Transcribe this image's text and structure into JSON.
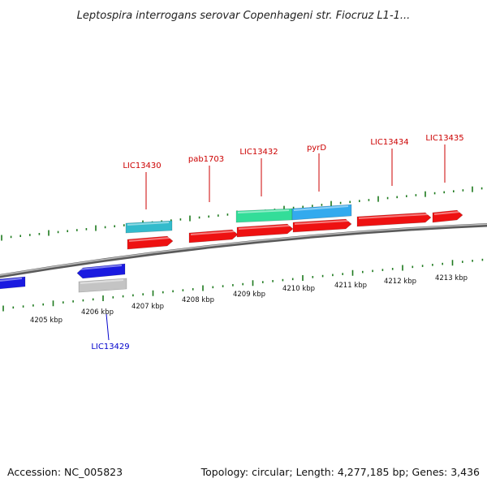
{
  "title": "Leptospira interrogans serovar Copenhageni str. Fiocruz L1-1...",
  "footer": {
    "accession": "Accession: NC_005823",
    "summary": "Topology: circular; Length: 4,277,185 bp; Genes: 3,436"
  },
  "colors": {
    "background": "#ffffff",
    "backbone": "#888888",
    "tick": "#1e7a1e",
    "forward_gene": "#ee1111",
    "reverse_gene": "#1a1ae0",
    "gene_cyan": "#33bbcc",
    "gene_green": "#33dd99",
    "gene_sky": "#33aaee",
    "gene_gray": "#c4c4c4",
    "label_forward": "#cc0000",
    "label_reverse": "#0000cc"
  },
  "scale_labels": [
    "4205 kbp",
    "4206 kbp",
    "4207 kbp",
    "4208 kbp",
    "4209 kbp",
    "4210 kbp",
    "4211 kbp",
    "4212 kbp",
    "4213 kbp"
  ],
  "gene_labels": [
    {
      "name": "LIC13430",
      "strand": "forward"
    },
    {
      "name": "pab1703",
      "strand": "forward"
    },
    {
      "name": "LIC13432",
      "strand": "forward"
    },
    {
      "name": "pyrD",
      "strand": "forward"
    },
    {
      "name": "LIC13434",
      "strand": "forward"
    },
    {
      "name": "LIC13435",
      "strand": "forward"
    },
    {
      "name": "LIC13429",
      "strand": "reverse"
    }
  ]
}
